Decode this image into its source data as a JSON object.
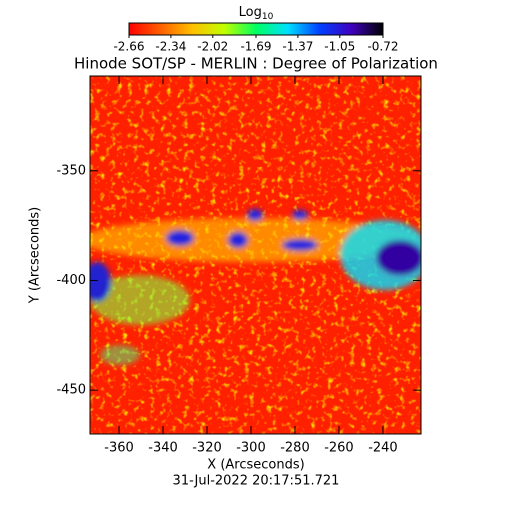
{
  "chart_data": {
    "type": "image",
    "title": "Hinode SOT/SP - MERLIN : Degree of Polarization",
    "x_label": "X (Arcseconds)",
    "y_label": "Y (Arcseconds)",
    "footer": "31-Jul-2022 20:17:51.721",
    "xlim": [
      -373.2,
      -222.7
    ],
    "xticks": [
      -360,
      -340,
      -320,
      -300,
      -280,
      -260,
      -240
    ],
    "ylim": [
      -470,
      -306.8
    ],
    "yticks": [
      -350,
      -400,
      -450
    ],
    "colorbar": {
      "label": "Log",
      "label_subscript": "10",
      "lim": [
        -2.66,
        -0.72
      ],
      "ticks": [
        -2.66,
        -2.34,
        -2.02,
        -1.69,
        -1.37,
        -1.05,
        -0.72
      ],
      "colors": [
        "#ff0000",
        "#ff6000",
        "#ffc000",
        "#c0ff00",
        "#00ff60",
        "#00e0ff",
        "#0040ff",
        "#4000c0",
        "#000000"
      ]
    }
  }
}
